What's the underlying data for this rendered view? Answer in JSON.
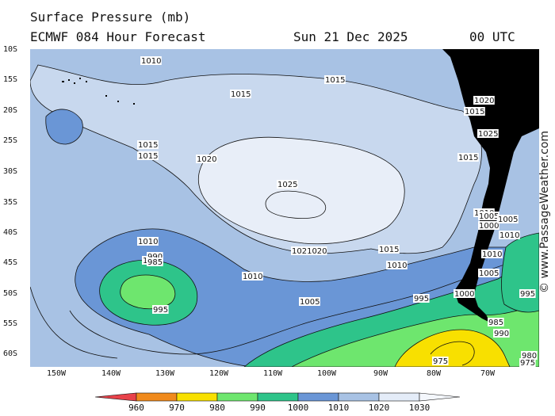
{
  "header": {
    "title": "Surface Pressure (mb)",
    "model": "ECMWF 084 Hour Forecast",
    "date": "Sun 21 Dec 2025",
    "time": "00 UTC"
  },
  "watermark": "© www.PassageWeather.com",
  "axes": {
    "lat_labels": [
      "10S",
      "15S",
      "20S",
      "25S",
      "30S",
      "35S",
      "40S",
      "45S",
      "50S",
      "55S",
      "60S"
    ],
    "lon_labels": [
      "150W",
      "140W",
      "130W",
      "120W",
      "110W",
      "100W",
      "90W",
      "80W",
      "70W"
    ]
  },
  "colorbar": {
    "labels": [
      "960",
      "970",
      "980",
      "990",
      "1000",
      "1010",
      "1020",
      "1030"
    ],
    "colors": [
      "#e8424a",
      "#f08a1c",
      "#f8e000",
      "#6ee66e",
      "#2ec48a",
      "#6a96d6",
      "#a8c2e4",
      "#e4ecf8"
    ]
  },
  "palette": {
    "ocean_1010_1015": "#a8c2e4",
    "band_1000_1010": "#6a96d6",
    "band_1015_1020": "#c8d8ee",
    "high_1020_1025": "#e8eef8",
    "band_990_1000": "#2ec48a",
    "band_980_990": "#6ee66e",
    "band_970_980": "#f8e000",
    "land": "#000000"
  },
  "isobar_labels": [
    {
      "text": "1010"
    },
    {
      "text": "1015"
    },
    {
      "text": "1015"
    },
    {
      "text": "1015"
    },
    {
      "text": "1015"
    },
    {
      "text": "1020"
    },
    {
      "text": "1025"
    },
    {
      "text": "1010"
    },
    {
      "text": "1021020"
    },
    {
      "text": "1015"
    },
    {
      "text": "1010"
    },
    {
      "text": "1000"
    },
    {
      "text": "990"
    },
    {
      "text": "985"
    },
    {
      "text": "995"
    },
    {
      "text": "1010"
    },
    {
      "text": "1005"
    },
    {
      "text": "995"
    },
    {
      "text": "1000"
    },
    {
      "text": "990"
    },
    {
      "text": "985"
    },
    {
      "text": "975"
    },
    {
      "text": "995"
    },
    {
      "text": "980"
    },
    {
      "text": "975"
    },
    {
      "text": "1015"
    },
    {
      "text": "1010"
    },
    {
      "text": "1005"
    },
    {
      "text": "1000"
    },
    {
      "text": "1005"
    },
    {
      "text": "1010"
    },
    {
      "text": "1010"
    },
    {
      "text": "1005"
    },
    {
      "text": "1015"
    },
    {
      "text": "1020"
    },
    {
      "text": "1025"
    }
  ]
}
